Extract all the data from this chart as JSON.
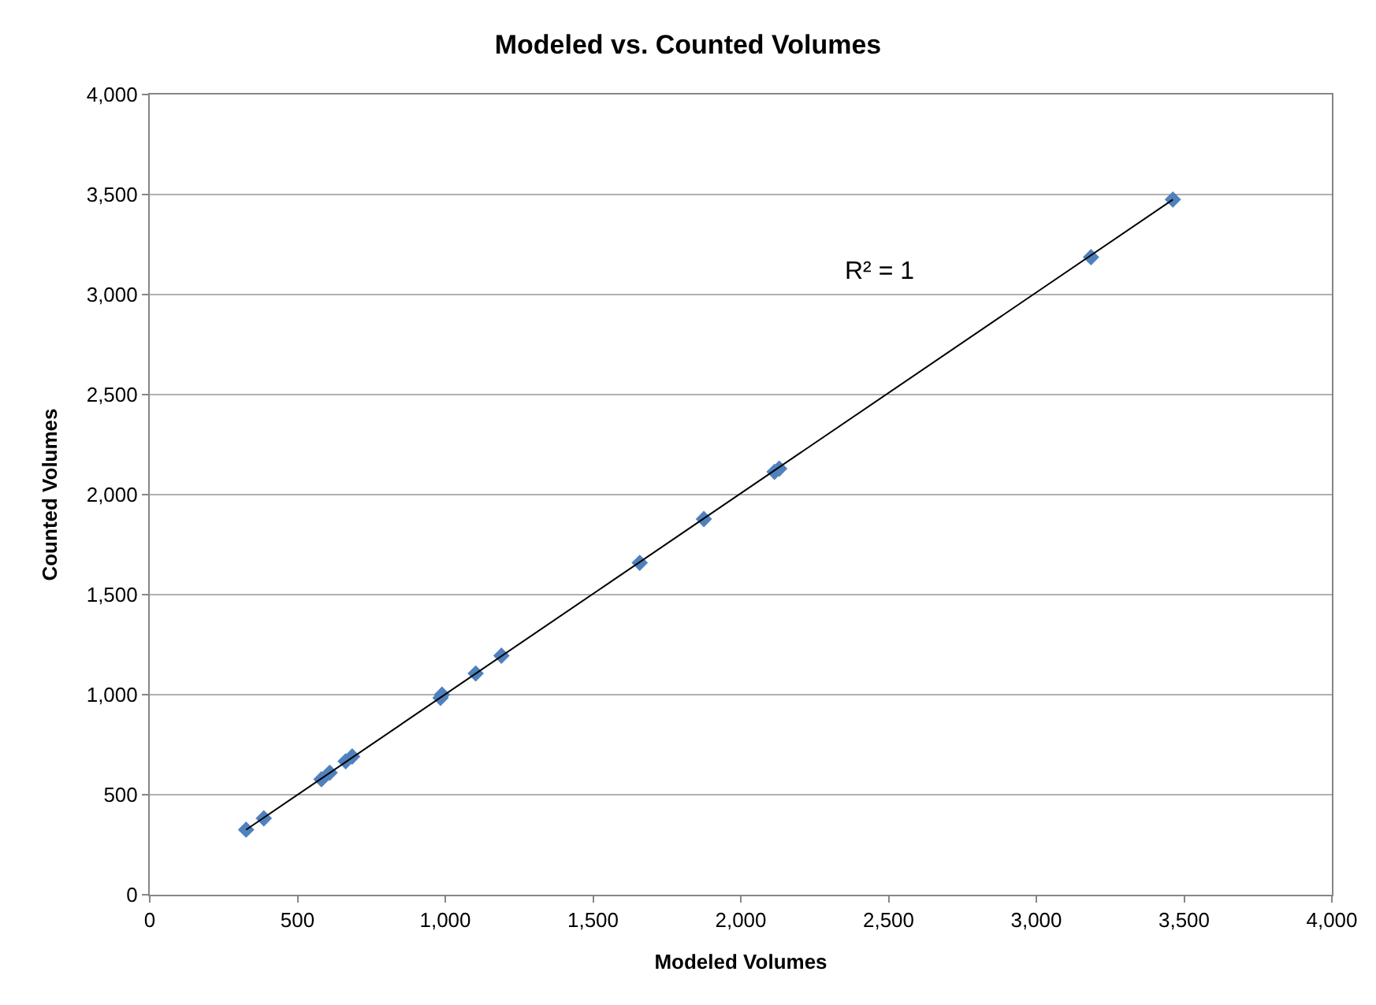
{
  "chart_data": {
    "type": "scatter",
    "title": "Modeled vs. Counted Volumes",
    "xlabel": "Modeled Volumes",
    "ylabel": "Counted Volumes",
    "x": [
      326,
      386,
      581,
      609,
      663,
      685,
      984,
      989,
      1103,
      1190,
      1658,
      1875,
      2114,
      2130,
      3185,
      3462
    ],
    "series": [
      {
        "color": "#4f81bd",
        "marker": "diamond",
        "values": [
          325,
          382,
          577,
          610,
          667,
          691,
          984,
          1000,
          1106,
          1195,
          1659,
          1878,
          2114,
          2130,
          3187,
          3475
        ]
      },
      {
        "type": "line",
        "color": "#000000",
        "marker": "none",
        "x": [
          326,
          3462
        ],
        "values": [
          325,
          3475
        ]
      }
    ],
    "annotations": [
      "R² = 1"
    ],
    "xlim": [
      0,
      4000
    ],
    "ylim": [
      0,
      4000
    ],
    "xticks": [
      0,
      500,
      {
        "value": 1000,
        "label": "1,000"
      },
      {
        "value": 1500,
        "label": "1,500"
      },
      {
        "value": 2000,
        "label": "2,000"
      },
      {
        "value": 2500,
        "label": "2,500"
      },
      {
        "value": 3000,
        "label": "3,000"
      },
      {
        "value": 3500,
        "label": "3,500"
      },
      {
        "value": 4000,
        "label": "4,000"
      }
    ],
    "yticks": [
      0,
      500,
      {
        "value": 1000,
        "label": "1,000"
      },
      {
        "value": 1500,
        "label": "1,500"
      },
      {
        "value": 2000,
        "label": "2,000"
      },
      {
        "value": 2500,
        "label": "2,500"
      },
      {
        "value": 3000,
        "label": "3,000"
      },
      {
        "value": 3500,
        "label": "3,500"
      },
      {
        "value": 4000,
        "label": "4,000"
      }
    ],
    "grid": "y"
  }
}
